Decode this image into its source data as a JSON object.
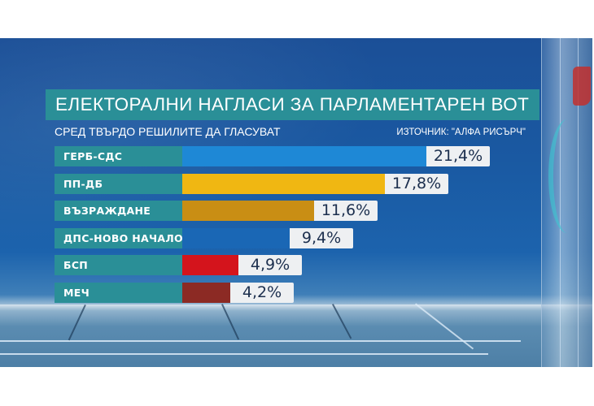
{
  "header": {
    "title": "ЕЛЕКТОРАЛНИ НАГЛАСИ ЗА ПАРЛАМЕНТАРЕН ВОТ",
    "subtitle": "СРЕД ТВЪРДО РЕШИЛИТЕ ДА ГЛАСУВАТ",
    "source": "ИЗТОЧНИК: \"АЛФА РИСЪРЧ\""
  },
  "colors": {
    "label_bg": "#2a8f97",
    "value_bg": "#eef0f2",
    "value_text": "#1c2f4e",
    "background": "#1b4f97"
  },
  "rows": [
    {
      "label": "ГЕРБ-СДС",
      "value_text": "21,4%",
      "value": 21.4,
      "color": "#1e88d6"
    },
    {
      "label": "ПП-ДБ",
      "value_text": "17,8%",
      "value": 17.8,
      "color": "#f0b712"
    },
    {
      "label": "ВЪЗРАЖДАНЕ",
      "value_text": "11,6%",
      "value": 11.6,
      "color": "#c98e14"
    },
    {
      "label": "ДПС-НОВО НАЧАЛО",
      "value_text": "9,4%",
      "value": 9.4,
      "color": "#1a67b5"
    },
    {
      "label": "БСП",
      "value_text": "4,9%",
      "value": 4.9,
      "color": "#d4141c"
    },
    {
      "label": "МЕЧ",
      "value_text": "4,2%",
      "value": 4.2,
      "color": "#8c2a24"
    }
  ],
  "chart_data": {
    "type": "bar",
    "orientation": "horizontal",
    "title": "ЕЛЕКТОРАЛНИ НАГЛАСИ ЗА ПАРЛАМЕНТАРЕН ВОТ",
    "subtitle": "СРЕД ТВЪРДО РЕШИЛИТЕ ДА ГЛАСУВАТ",
    "source": "ИЗТОЧНИК: \"АЛФА РИСЪРЧ\"",
    "categories": [
      "ГЕРБ-СДС",
      "ПП-ДБ",
      "ВЪЗРАЖДАНЕ",
      "ДПС-НОВО НАЧАЛО",
      "БСП",
      "МЕЧ"
    ],
    "values": [
      21.4,
      17.8,
      11.6,
      9.4,
      4.9,
      4.2
    ],
    "value_labels": [
      "21,4%",
      "17,8%",
      "11,6%",
      "9,4%",
      "4,9%",
      "4,2%"
    ],
    "colors": [
      "#1e88d6",
      "#f0b712",
      "#c98e14",
      "#1a67b5",
      "#d4141c",
      "#8c2a24"
    ],
    "xlabel": "",
    "ylabel": "",
    "unit": "%",
    "grid": false,
    "legend": "none"
  }
}
